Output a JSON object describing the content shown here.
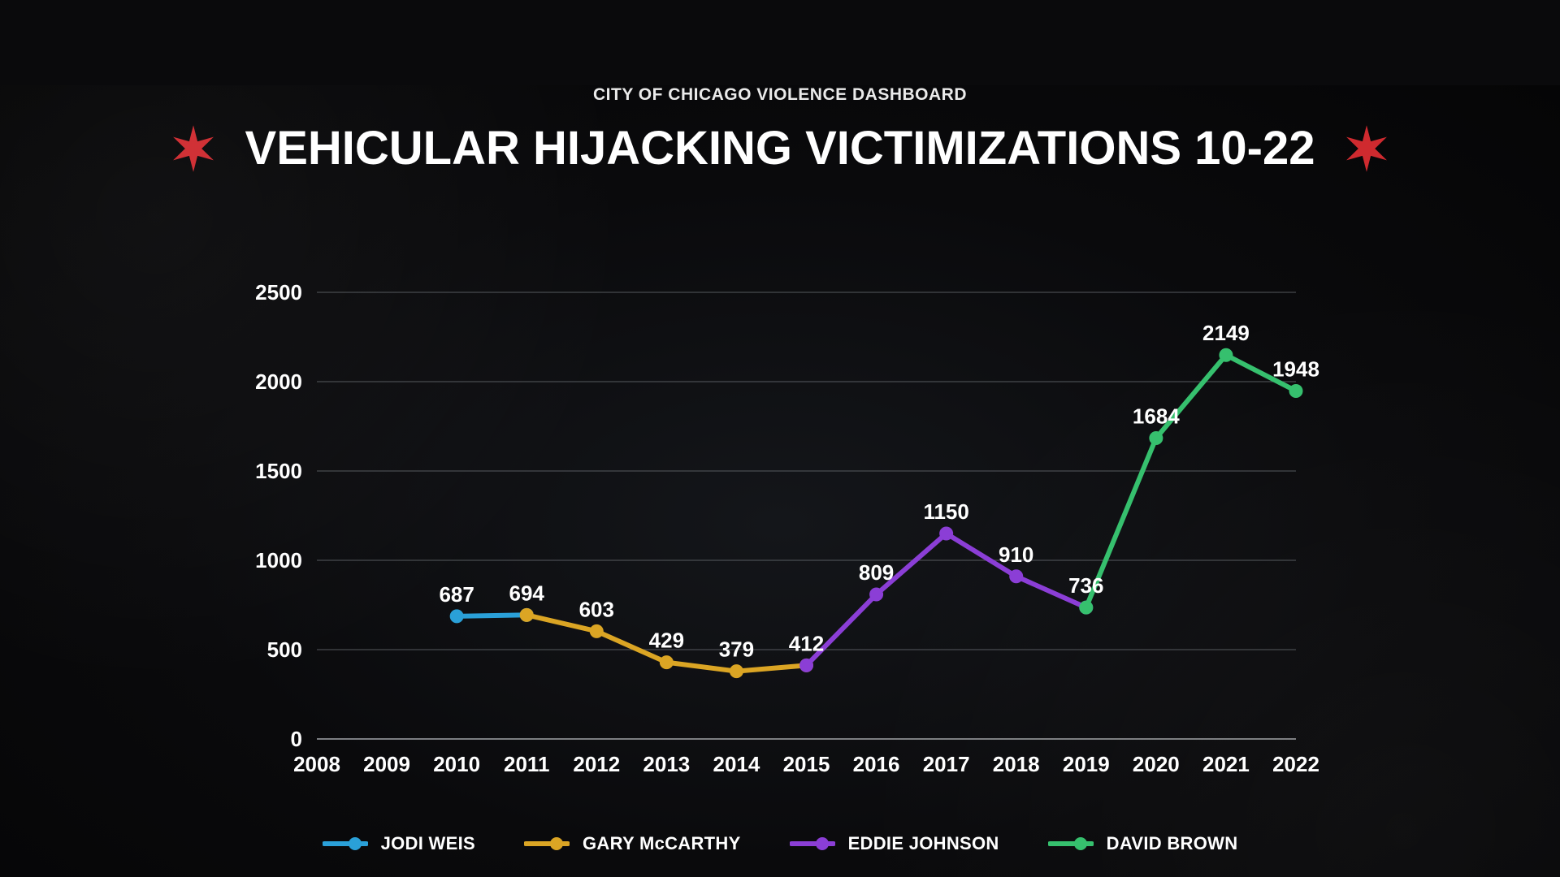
{
  "header": {
    "subhead": "CITY OF CHICAGO VIOLENCE DASHBOARD",
    "title": "VEHICULAR HIJACKING VICTIMIZATIONS 10-22",
    "star_color": "#cf2a2f",
    "text_color": "#ffffff",
    "subhead_fontsize": 21,
    "title_fontsize": 58
  },
  "chart": {
    "type": "line",
    "background_color": "transparent",
    "grid_color": "#5b5f64",
    "axis_color": "#9da0a3",
    "tick_color": "#ffffff",
    "label_fontsize": 26,
    "data_label_fontsize": 26,
    "line_width": 6,
    "marker_radius": 8,
    "marker_style": "circle",
    "xlim": [
      2008,
      2022
    ],
    "ylim": [
      0,
      2500
    ],
    "ytick_step": 500,
    "x_categories": [
      2008,
      2009,
      2010,
      2011,
      2012,
      2013,
      2014,
      2015,
      2016,
      2017,
      2018,
      2019,
      2020,
      2021,
      2022
    ],
    "series": [
      {
        "name": "JODI WEIS",
        "color": "#2aa0d8",
        "points": [
          {
            "x": 2010,
            "y": 687,
            "label": "687"
          },
          {
            "x": 2011,
            "y": 694,
            "label": null
          }
        ]
      },
      {
        "name": "GARY McCARTHY",
        "color": "#dba524",
        "points": [
          {
            "x": 2011,
            "y": 694,
            "label": "694"
          },
          {
            "x": 2012,
            "y": 603,
            "label": "603"
          },
          {
            "x": 2013,
            "y": 429,
            "label": "429"
          },
          {
            "x": 2014,
            "y": 379,
            "label": "379"
          },
          {
            "x": 2015,
            "y": 412,
            "label": null
          }
        ]
      },
      {
        "name": "EDDIE JOHNSON",
        "color": "#8b3ed6",
        "points": [
          {
            "x": 2015,
            "y": 412,
            "label": "412"
          },
          {
            "x": 2016,
            "y": 809,
            "label": "809"
          },
          {
            "x": 2017,
            "y": 1150,
            "label": "1150"
          },
          {
            "x": 2018,
            "y": 910,
            "label": "910"
          },
          {
            "x": 2019,
            "y": 736,
            "label": null
          }
        ]
      },
      {
        "name": "DAVID BROWN",
        "color": "#36c06e",
        "points": [
          {
            "x": 2019,
            "y": 736,
            "label": "736"
          },
          {
            "x": 2020,
            "y": 1684,
            "label": "1684"
          },
          {
            "x": 2021,
            "y": 2149,
            "label": "2149"
          },
          {
            "x": 2022,
            "y": 1948,
            "label": "1948"
          }
        ]
      }
    ]
  },
  "legend": {
    "items": [
      {
        "label": "JODI WEIS",
        "color": "#2aa0d8"
      },
      {
        "label": "GARY McCARTHY",
        "color": "#dba524"
      },
      {
        "label": "EDDIE JOHNSON",
        "color": "#8b3ed6"
      },
      {
        "label": "DAVID BROWN",
        "color": "#36c06e"
      }
    ]
  }
}
